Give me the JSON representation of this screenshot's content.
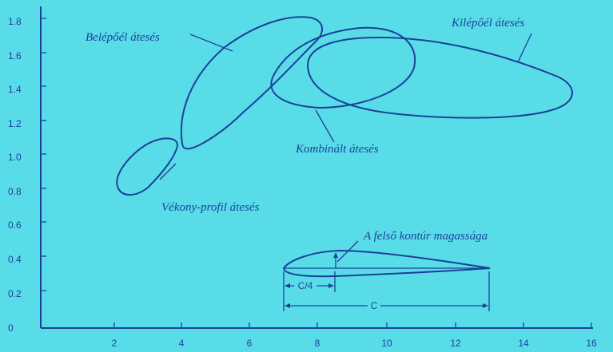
{
  "axes": {
    "y_ticks": [
      "0",
      "0.2",
      "0.4",
      "0.6",
      "0.8",
      "1.0",
      "1.2",
      "1.4",
      "1.6",
      "1.8"
    ],
    "x_ticks": [
      "2",
      "4",
      "6",
      "8",
      "10",
      "12",
      "14",
      "16"
    ]
  },
  "regions": {
    "leading_edge_stall": "Belépőél átesés",
    "trailing_edge_stall": "Kilépőél átesés",
    "combined_stall": "Kombinált átesés",
    "thin_profile_stall": "Vékony-profil átesés"
  },
  "airfoil": {
    "upper_contour_height_label": "A felső kontúr magassága",
    "quarter_chord_label": "C/4",
    "chord_label": "C"
  },
  "colors": {
    "background": "#58dde8",
    "ink": "#1d3f9a"
  }
}
